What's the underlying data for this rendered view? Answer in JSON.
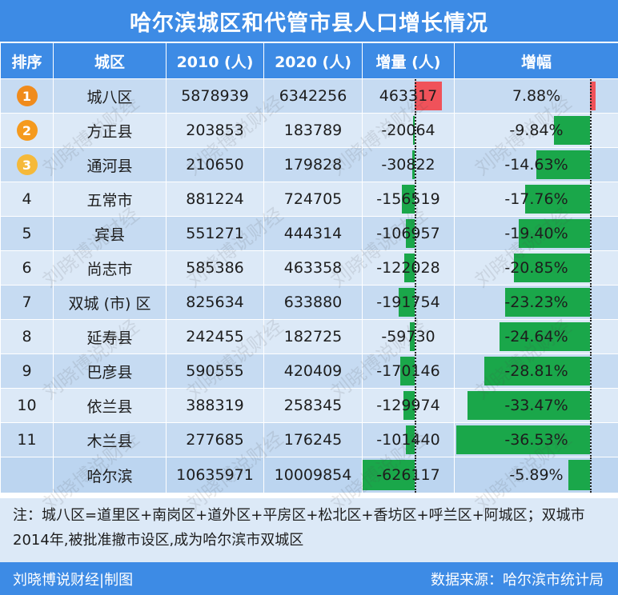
{
  "title": "哈尔滨城区和代管市县人口增长情况",
  "headers": [
    "排序",
    "城区",
    "2010 (人)",
    "2020 (人)",
    "增量 (人)",
    "增幅"
  ],
  "rows": [
    {
      "rank": "1",
      "district": "城八区",
      "y2010": "5878939",
      "y2020": "6342256",
      "delta": "463317",
      "pct": "7.88%"
    },
    {
      "rank": "2",
      "district": "方正县",
      "y2010": "203853",
      "y2020": "183789",
      "delta": "-20064",
      "pct": "-9.84%"
    },
    {
      "rank": "3",
      "district": "通河县",
      "y2010": "210650",
      "y2020": "179828",
      "delta": "-30822",
      "pct": "-14.63%"
    },
    {
      "rank": "4",
      "district": "五常市",
      "y2010": "881224",
      "y2020": "724705",
      "delta": "-156519",
      "pct": "-17.76%"
    },
    {
      "rank": "5",
      "district": "宾县",
      "y2010": "551271",
      "y2020": "444314",
      "delta": "-106957",
      "pct": "-19.40%"
    },
    {
      "rank": "6",
      "district": "尚志市",
      "y2010": "585386",
      "y2020": "463358",
      "delta": "-122028",
      "pct": "-20.85%"
    },
    {
      "rank": "7",
      "district": "双城 (市) 区",
      "y2010": "825634",
      "y2020": "633880",
      "delta": "-191754",
      "pct": "-23.23%"
    },
    {
      "rank": "8",
      "district": "延寿县",
      "y2010": "242455",
      "y2020": "182725",
      "delta": "-59730",
      "pct": "-24.64%"
    },
    {
      "rank": "9",
      "district": "巴彦县",
      "y2010": "590555",
      "y2020": "420409",
      "delta": "-170146",
      "pct": "-28.81%"
    },
    {
      "rank": "10",
      "district": "依兰县",
      "y2010": "388319",
      "y2020": "258345",
      "delta": "-129974",
      "pct": "-33.47%"
    },
    {
      "rank": "11",
      "district": "木兰县",
      "y2010": "277685",
      "y2020": "176245",
      "delta": "-101440",
      "pct": "-36.53%"
    }
  ],
  "total": {
    "rank": "",
    "district": "哈尔滨",
    "y2010": "10635971",
    "y2020": "10009854",
    "delta": "-626117",
    "pct": "-5.89%"
  },
  "note": "注：城八区=道里区+南岗区+道外区+平房区+松北区+香坊区+呼兰区+阿城区；双城市2014年,被批准撤市设区,成为哈尔滨市双城区",
  "footer": {
    "left": "刘晓博说财经|制图",
    "right": "数据来源：哈尔滨市统计局"
  },
  "watermark": "刘晓博说财经",
  "colors": {
    "header": "#3d8be5",
    "positive_bar": "#f0525a",
    "negative_bar": "#1aa74a",
    "medal_gold": "#f08b1c",
    "medal_silver": "#f59a1e",
    "medal_bronze": "#f5b93a"
  },
  "chart_data": {
    "type": "table",
    "columns": [
      "排序",
      "城区",
      "2010 (人)",
      "2020 (人)",
      "增量 (人)",
      "增幅"
    ],
    "categories": [
      "城八区",
      "方正县",
      "通河县",
      "五常市",
      "宾县",
      "尚志市",
      "双城 (市) 区",
      "延寿县",
      "巴彦县",
      "依兰县",
      "木兰县",
      "哈尔滨"
    ],
    "series": [
      {
        "name": "2010 (人)",
        "values": [
          5878939,
          203853,
          210650,
          881224,
          551271,
          585386,
          825634,
          242455,
          590555,
          388319,
          277685,
          10635971
        ]
      },
      {
        "name": "2020 (人)",
        "values": [
          6342256,
          183789,
          179828,
          724705,
          444314,
          463358,
          633880,
          182725,
          420409,
          258345,
          176245,
          10009854
        ]
      },
      {
        "name": "增量 (人)",
        "values": [
          463317,
          -20064,
          -30822,
          -156519,
          -106957,
          -122028,
          -191754,
          -59730,
          -170146,
          -129974,
          -101440,
          -626117
        ]
      },
      {
        "name": "增幅",
        "values": [
          7.88,
          -9.84,
          -14.63,
          -17.76,
          -19.4,
          -20.85,
          -23.23,
          -24.64,
          -28.81,
          -33.47,
          -36.53,
          -5.89
        ]
      }
    ],
    "title": "哈尔滨城区和代管市县人口增长情况"
  }
}
